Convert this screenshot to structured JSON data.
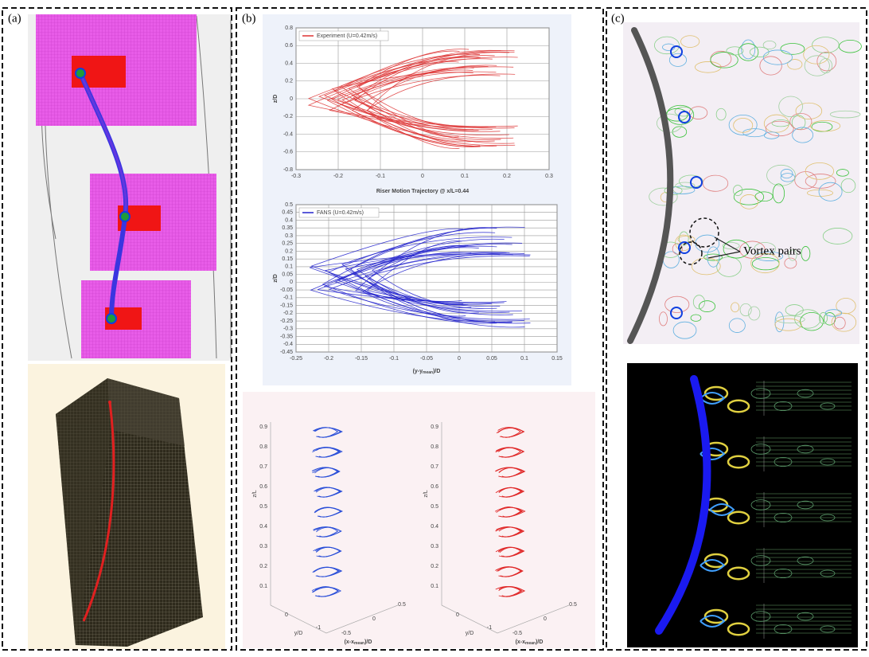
{
  "panels": {
    "a": {
      "label": "(a)"
    },
    "b": {
      "label": "(b)",
      "top_plot": {
        "legend": "Experiment (U=0.42m/s)",
        "x_title": "Riser Motion Trajectory @ x/L=0.44",
        "y_title": "z/D",
        "x_tick_labels": [
          "-0.3",
          "-0.2",
          "-0.1",
          "0",
          "0.1",
          "0.2",
          "0.3"
        ],
        "y_tick_labels": [
          "0.8",
          "0.6",
          "0.4",
          "0.2",
          "0",
          "-0.2",
          "-0.4",
          "-0.6",
          "-0.8"
        ]
      },
      "bottom_plot": {
        "legend": "FANS (U=0.42m/s)",
        "x_title": {
          "main": "(y-y",
          "sub": "mean",
          "tail": ")/D"
        },
        "y_title": "z/D",
        "x_tick_labels": [
          "-0.25",
          "-0.2",
          "-0.15",
          "-0.1",
          "-0.05",
          "0",
          "0.05",
          "0.1",
          "0.15"
        ],
        "y_tick_labels": [
          "0.5",
          "0.45",
          "0.4",
          "0.35",
          "0.3",
          "0.25",
          "0.2",
          "0.15",
          "0.1",
          "0.05",
          "0",
          "-0.05",
          "-0.1",
          "-0.15",
          "-0.2",
          "-0.25",
          "-0.3",
          "-0.35",
          "-0.4",
          "-0.45"
        ]
      },
      "views_3d": {
        "z_title": "z/L",
        "y_title": "y/D",
        "x_title": {
          "main": "(x-x",
          "sub": "mean",
          "tail": ")/D"
        },
        "z_tick_labels": [
          "0.9",
          "0.8",
          "0.7",
          "0.6",
          "0.5",
          "0.4",
          "0.3",
          "0.2",
          "0.1"
        ],
        "y_tick_labels": [
          "0",
          "-1"
        ],
        "x_tick_labels": [
          "-0.5",
          "0",
          "0.5"
        ]
      }
    },
    "c": {
      "label": "(c)",
      "annotation": "Vortex pairs"
    }
  }
}
